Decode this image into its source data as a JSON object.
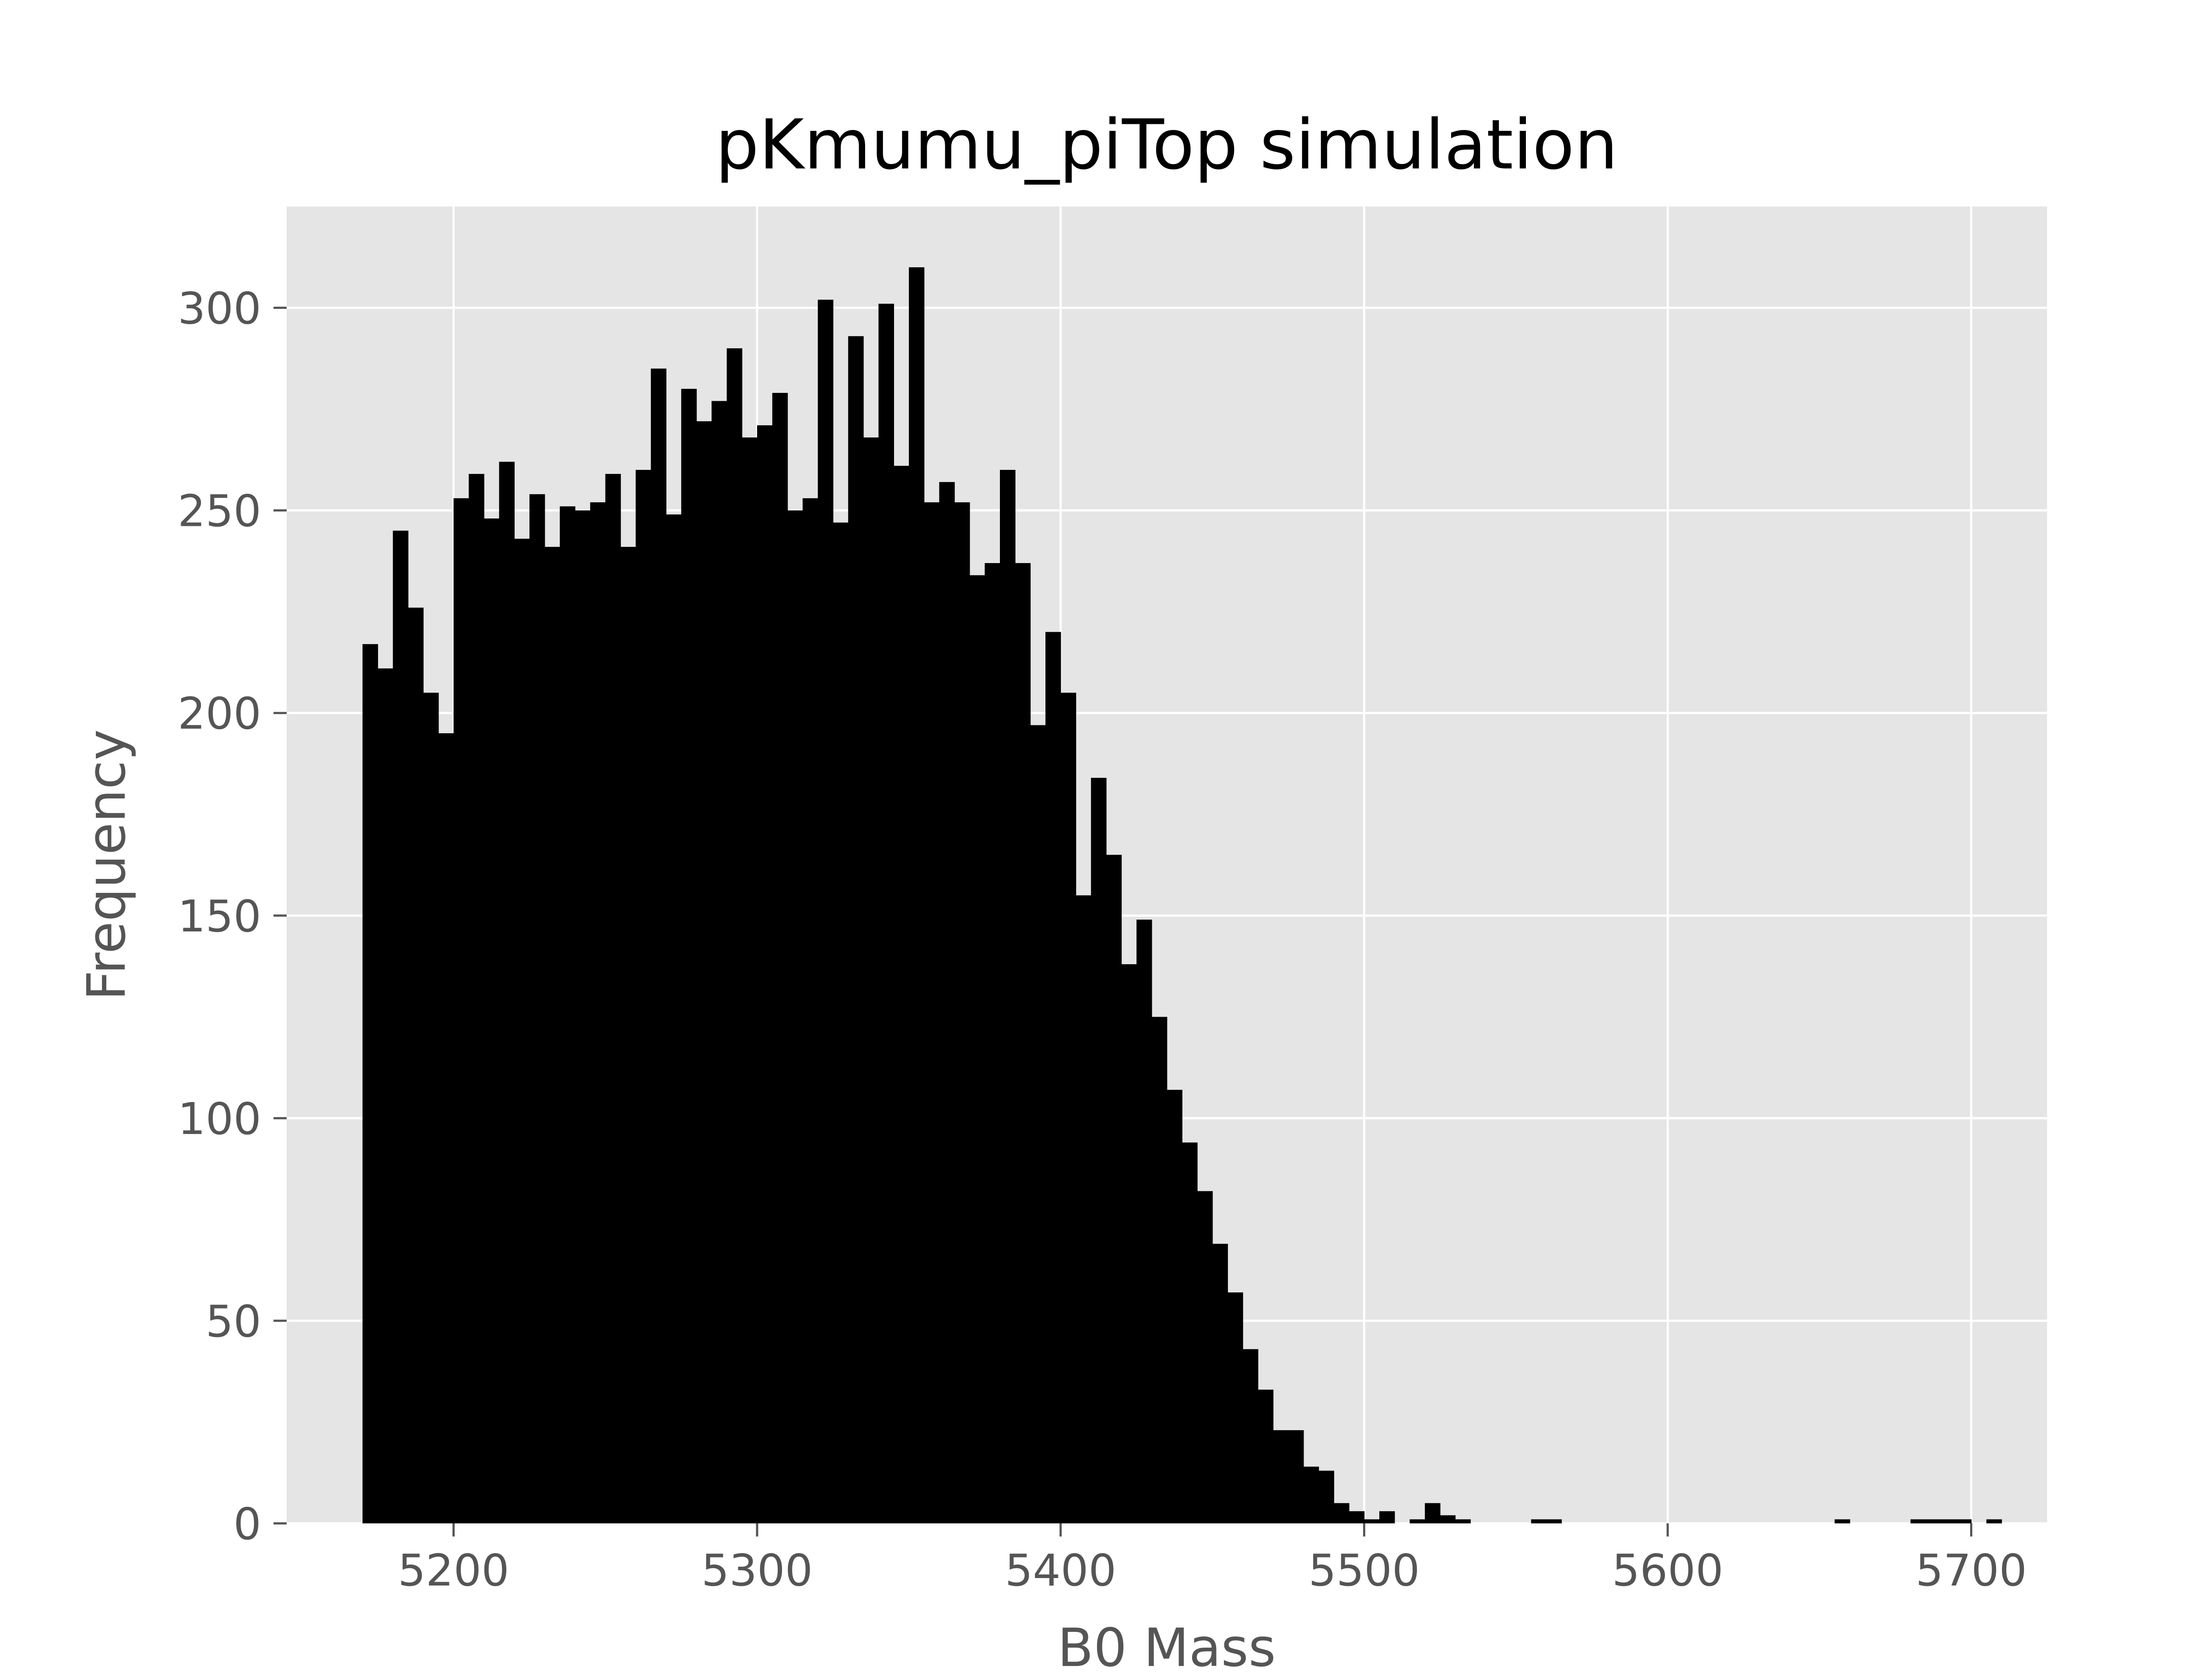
{
  "chart_data": {
    "type": "bar",
    "title": "pKmumu_piTop simulation",
    "xlabel": "B0 Mass",
    "ylabel": "Frequency",
    "xlim": [
      5145,
      5725
    ],
    "ylim": [
      0,
      325
    ],
    "grid": true,
    "xticks": [
      5200,
      5300,
      5400,
      5500,
      5600,
      5700
    ],
    "yticks": [
      0,
      50,
      100,
      150,
      200,
      250,
      300
    ],
    "bin_start": 5170,
    "bin_width": 5,
    "values": [
      217,
      211,
      245,
      226,
      205,
      195,
      253,
      259,
      248,
      262,
      243,
      254,
      241,
      251,
      250,
      252,
      259,
      241,
      260,
      285,
      249,
      280,
      272,
      277,
      290,
      268,
      271,
      279,
      250,
      253,
      302,
      247,
      293,
      268,
      301,
      261,
      310,
      252,
      257,
      252,
      234,
      237,
      260,
      237,
      197,
      220,
      205,
      155,
      184,
      165,
      138,
      149,
      125,
      107,
      94,
      82,
      69,
      57,
      43,
      33,
      23,
      23,
      14,
      13,
      5,
      3,
      1,
      3,
      0,
      1,
      5,
      2,
      1,
      0,
      0,
      0,
      0,
      1,
      1,
      0,
      0,
      0,
      0,
      0,
      0,
      0,
      0,
      0,
      0,
      0,
      0,
      0,
      0,
      0,
      0,
      0,
      0,
      1,
      0,
      0,
      0,
      0,
      1,
      1,
      1,
      1,
      0,
      1
    ]
  },
  "colors": {
    "figure_background": "#ffffff",
    "plot_background": "#e5e5e5",
    "grid": "#ffffff",
    "bars": "#000000",
    "tick_text": "#555555",
    "title_text": "#000000"
  }
}
